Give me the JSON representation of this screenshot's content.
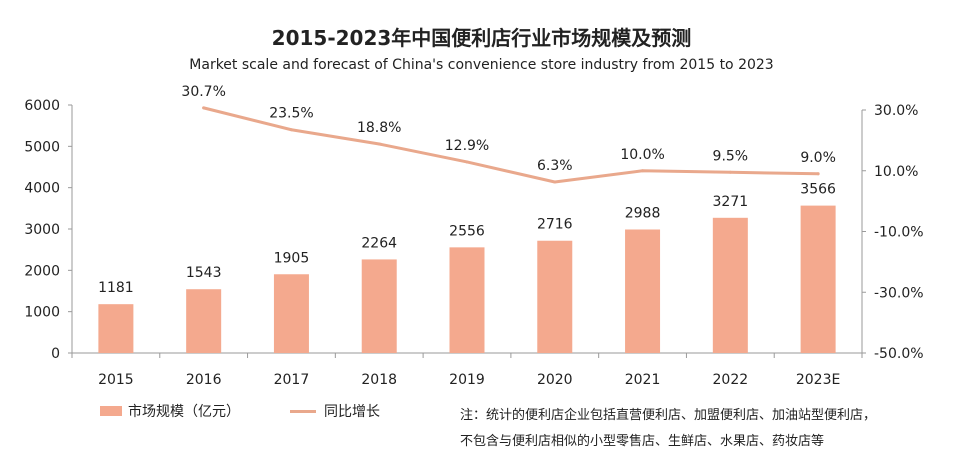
{
  "chart_data": {
    "type": "bar",
    "title": "2015-2023年中国便利店行业市场规模及预测",
    "subtitle": "Market scale and forecast of China's convenience store industry from 2015 to 2023",
    "categories": [
      "2015",
      "2016",
      "2017",
      "2018",
      "2019",
      "2020",
      "2021",
      "2022",
      "2023E"
    ],
    "series": [
      {
        "name": "市场规模（亿元）",
        "type": "bar",
        "axis": "left",
        "values": [
          1181,
          1543,
          1905,
          2264,
          2556,
          2716,
          2988,
          3271,
          3566
        ],
        "labels": [
          "1181",
          "1543",
          "1905",
          "2264",
          "2556",
          "2716",
          "2988",
          "3271",
          "3566"
        ]
      },
      {
        "name": "同比增长",
        "type": "line",
        "axis": "right",
        "values": [
          null,
          30.7,
          23.5,
          18.8,
          12.9,
          6.3,
          10.0,
          9.5,
          9.0
        ],
        "labels": [
          null,
          "30.7%",
          "23.5%",
          "18.8%",
          "12.9%",
          "6.3%",
          "10.0%",
          "9.5%",
          "9.0%"
        ]
      }
    ],
    "ylim_left": [
      0,
      6000
    ],
    "yticks_left": [
      "0",
      "1000",
      "2000",
      "3000",
      "4000",
      "5000",
      "6000"
    ],
    "ylim_right": [
      -50,
      30
    ],
    "yticks_right": [
      "-50.0%",
      "-30.0%",
      "-10.0%",
      "10.0%",
      "30.0%"
    ],
    "colors": {
      "bar": "#f4a98e",
      "line": "#e9a88c"
    },
    "legend_position": "bottom-left"
  },
  "note": {
    "line1": "注：统计的便利店企业包括直营便利店、加盟便利店、加油站型便利店，",
    "line2": "不包含与便利店相似的小型零售店、生鲜店、水果店、药妆店等"
  }
}
